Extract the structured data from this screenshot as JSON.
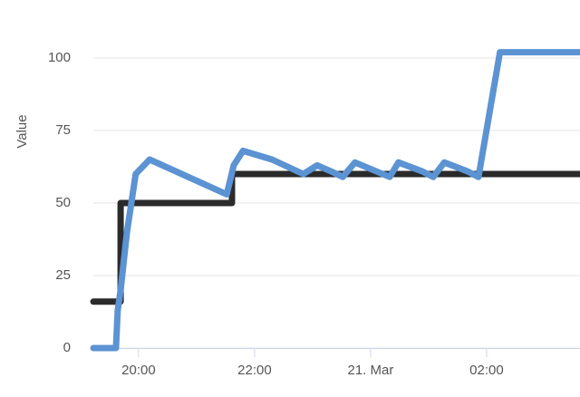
{
  "chart_data": {
    "type": "line",
    "y_label": "Value",
    "x": [
      19.22,
      19.61,
      19.64,
      19.69,
      19.8,
      19.95,
      20.19,
      21.52,
      21.64,
      21.8,
      22.3,
      22.84,
      23.08,
      23.31,
      23.52,
      23.73,
      24.09,
      24.33,
      24.48,
      24.88,
      25.08,
      25.27,
      25.66,
      25.86,
      26.23,
      27.61
    ],
    "series": [
      {
        "color": "#5b93d3",
        "values": [
          0,
          0,
          13,
          20,
          40,
          60,
          65,
          53,
          63,
          68,
          65,
          60,
          63,
          61,
          59,
          64,
          61,
          59,
          64,
          61,
          59,
          64,
          61,
          59,
          102,
          102
        ]
      }
    ],
    "step_x": [
      19.22,
      19.69,
      19.69,
      21.61,
      21.61,
      27.61
    ],
    "step_series": {
      "color": "#2b2b2b",
      "values": [
        16,
        16,
        50,
        50,
        60,
        60
      ]
    },
    "xlim": [
      19.22,
      27.61
    ],
    "xticks": [
      {
        "value": 20,
        "label": "20:00"
      },
      {
        "value": 22,
        "label": "22:00"
      },
      {
        "value": 24,
        "label": "21. Mar"
      },
      {
        "value": 26,
        "label": "02:00"
      }
    ],
    "ylim": [
      0,
      110
    ],
    "yticks": [
      0,
      25,
      50,
      75,
      100
    ],
    "grid": true
  }
}
